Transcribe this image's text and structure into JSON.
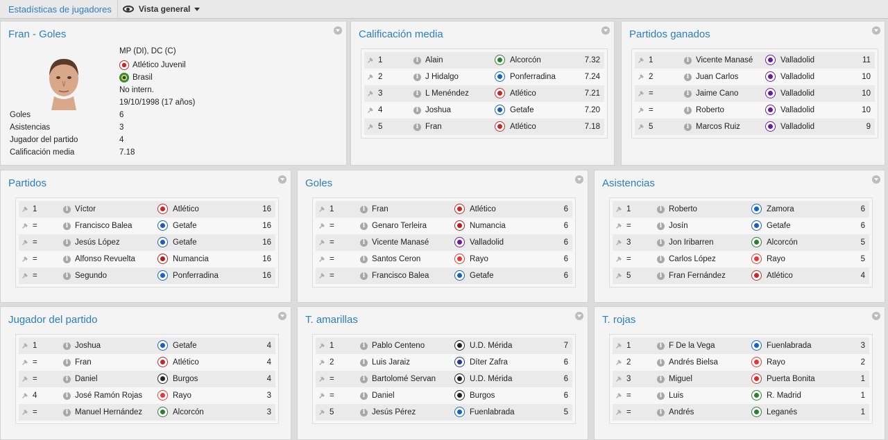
{
  "topbar": {
    "breadcrumb": "Estadísticas de jugadores",
    "view_label": "Vista general",
    "view_icon": "eye-icon"
  },
  "profile": {
    "title": "Fran - Goles",
    "positions": "MP (DI), DC (C)",
    "club": "Atlético Juvenil",
    "nationality": "Brasil",
    "international": "No intern.",
    "birth": "19/10/1998 (17 años)",
    "stats": [
      {
        "label": "Goles",
        "value": "6"
      },
      {
        "label": "Asistencias",
        "value": "3"
      },
      {
        "label": "Jugador del partido",
        "value": "4"
      },
      {
        "label": "Calificación media",
        "value": "7.18"
      }
    ]
  },
  "panels": [
    {
      "title": "Calificación media",
      "rows": [
        {
          "rank": "1",
          "name": "Alain",
          "club": "Alcorcón",
          "value": "7.32",
          "color": "#2e7d32"
        },
        {
          "rank": "2",
          "name": "J Hidalgo",
          "club": "Ponferradina",
          "value": "7.24",
          "color": "#1565c0"
        },
        {
          "rank": "3",
          "name": "L Menéndez",
          "club": "Atlético",
          "value": "7.21",
          "color": "#c62828"
        },
        {
          "rank": "4",
          "name": "Joshua",
          "club": "Getafe",
          "value": "7.20",
          "color": "#1e5fb4"
        },
        {
          "rank": "5",
          "name": "Fran",
          "club": "Atlético",
          "value": "7.18",
          "color": "#c62828"
        }
      ]
    },
    {
      "title": "Partidos ganados",
      "rows": [
        {
          "rank": "1",
          "name": "Vicente Manasé",
          "club": "Valladolid",
          "value": "11",
          "color": "#6a1b9a"
        },
        {
          "rank": "2",
          "name": "Juan Carlos",
          "club": "Valladolid",
          "value": "10",
          "color": "#6a1b9a"
        },
        {
          "rank": "=",
          "name": "Jaime Cano",
          "club": "Valladolid",
          "value": "10",
          "color": "#6a1b9a"
        },
        {
          "rank": "=",
          "name": "Roberto",
          "club": "Valladolid",
          "value": "10",
          "color": "#6a1b9a"
        },
        {
          "rank": "5",
          "name": "Marcos Ruiz",
          "club": "Valladolid",
          "value": "9",
          "color": "#6a1b9a"
        }
      ]
    },
    {
      "title": "Partidos",
      "rows": [
        {
          "rank": "1",
          "name": "Víctor",
          "club": "Atlético",
          "value": "16",
          "color": "#c62828"
        },
        {
          "rank": "=",
          "name": "Francisco Balea",
          "club": "Getafe",
          "value": "16",
          "color": "#1e5fb4"
        },
        {
          "rank": "=",
          "name": "Jesús López",
          "club": "Getafe",
          "value": "16",
          "color": "#1e5fb4"
        },
        {
          "rank": "=",
          "name": "Alfonso Revuelta",
          "club": "Numancia",
          "value": "16",
          "color": "#b71c1c"
        },
        {
          "rank": "=",
          "name": "Segundo",
          "club": "Ponferradina",
          "value": "16",
          "color": "#1565c0"
        }
      ]
    },
    {
      "title": "Goles",
      "rows": [
        {
          "rank": "1",
          "name": "Fran",
          "club": "Atlético",
          "value": "6",
          "color": "#c62828"
        },
        {
          "rank": "=",
          "name": "Genaro Terleira",
          "club": "Numancia",
          "value": "6",
          "color": "#b71c1c"
        },
        {
          "rank": "=",
          "name": "Vicente Manasé",
          "club": "Valladolid",
          "value": "6",
          "color": "#6a1b9a"
        },
        {
          "rank": "=",
          "name": "Santos Ceron",
          "club": "Rayo",
          "value": "6",
          "color": "#e53935"
        },
        {
          "rank": "=",
          "name": "Francisco Balea",
          "club": "Getafe",
          "value": "6",
          "color": "#1e5fb4"
        }
      ]
    },
    {
      "title": "Asistencias",
      "rows": [
        {
          "rank": "1",
          "name": "Roberto",
          "club": "Zamora",
          "value": "6",
          "color": "#1565c0"
        },
        {
          "rank": "=",
          "name": "Josín",
          "club": "Getafe",
          "value": "6",
          "color": "#1e5fb4"
        },
        {
          "rank": "3",
          "name": "Jon Iribarren",
          "club": "Alcorcón",
          "value": "5",
          "color": "#2e7d32"
        },
        {
          "rank": "=",
          "name": "Carlos López",
          "club": "Rayo",
          "value": "5",
          "color": "#e53935"
        },
        {
          "rank": "5",
          "name": "Fran Fernández",
          "club": "Atlético",
          "value": "4",
          "color": "#c62828"
        }
      ]
    },
    {
      "title": "Jugador del partido",
      "rows": [
        {
          "rank": "1",
          "name": "Joshua",
          "club": "Getafe",
          "value": "4",
          "color": "#1e5fb4"
        },
        {
          "rank": "=",
          "name": "Fran",
          "club": "Atlético",
          "value": "4",
          "color": "#c62828"
        },
        {
          "rank": "=",
          "name": "Daniel",
          "club": "Burgos",
          "value": "4",
          "color": "#222222"
        },
        {
          "rank": "4",
          "name": "José Ramón Rojas",
          "club": "Rayo",
          "value": "3",
          "color": "#e53935"
        },
        {
          "rank": "=",
          "name": "Manuel Hernández",
          "club": "Alcorcón",
          "value": "3",
          "color": "#2e7d32"
        }
      ]
    },
    {
      "title": "T. amarillas",
      "rows": [
        {
          "rank": "1",
          "name": "Pablo Centeno",
          "club": "U.D. Mérida",
          "value": "7",
          "color": "#222222"
        },
        {
          "rank": "2",
          "name": "Luis Jaraiz",
          "club": "Díter Zafra",
          "value": "6",
          "color": "#283593"
        },
        {
          "rank": "=",
          "name": "Bartolomé Servan",
          "club": "U.D. Mérida",
          "value": "6",
          "color": "#222222"
        },
        {
          "rank": "=",
          "name": "Daniel",
          "club": "Burgos",
          "value": "6",
          "color": "#222222"
        },
        {
          "rank": "5",
          "name": "Jesús Pérez",
          "club": "Fuenlabrada",
          "value": "5",
          "color": "#1565c0"
        }
      ]
    },
    {
      "title": "T. rojas",
      "rows": [
        {
          "rank": "1",
          "name": "F De la Vega",
          "club": "Fuenlabrada",
          "value": "3",
          "color": "#1565c0"
        },
        {
          "rank": "2",
          "name": "Andrés Bielsa",
          "club": "Rayo",
          "value": "2",
          "color": "#e53935"
        },
        {
          "rank": "3",
          "name": "Miguel",
          "club": "Puerta Bonita",
          "value": "1",
          "color": "#d32f2f"
        },
        {
          "rank": "=",
          "name": "Luis",
          "club": "R. Madrid",
          "value": "1",
          "color": "#2e7d32"
        },
        {
          "rank": "=",
          "name": "Andrés",
          "club": "Leganés",
          "value": "1",
          "color": "#2e7d32"
        }
      ]
    }
  ]
}
